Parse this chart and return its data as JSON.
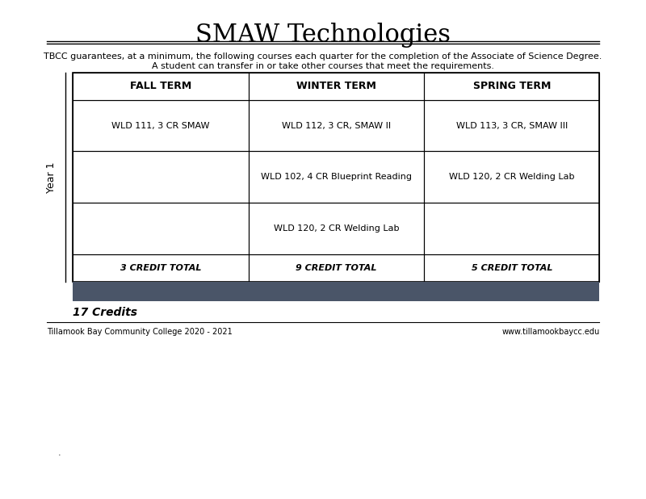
{
  "title": "SMAW Technologies",
  "subtitle_line1": "TBCC guarantees, at a minimum, the following courses each quarter for the completion of the Associate of Science Degree.",
  "subtitle_line2": "A student can transfer in or take other courses that meet the requirements.",
  "col_headers": [
    "FALL TERM",
    "WINTER TERM",
    "SPRING TERM"
  ],
  "year_label": "Year 1",
  "rows": [
    [
      "WLD 111, 3 CR SMAW",
      "WLD 112, 3 CR, SMAW II",
      "WLD 113, 3 CR, SMAW III"
    ],
    [
      "",
      "WLD 102, 4 CR Blueprint Reading",
      "WLD 120, 2 CR Welding Lab"
    ],
    [
      "",
      "WLD 120, 2 CR Welding Lab",
      ""
    ]
  ],
  "totals": [
    "3 CREDIT TOTAL",
    "9 CREDIT TOTAL",
    "5 CREDIT TOTAL"
  ],
  "total_credits": "17 Credits",
  "footer_left": "Tillamook Bay Community College 2020 - 2021",
  "footer_right": "www.tillamookbaycc.edu",
  "dark_band_color": "#4a5568",
  "table_border_color": "#000000",
  "bg_color": "#ffffff",
  "title_fontsize": 22,
  "subtitle_fontsize": 8,
  "header_fontsize": 9,
  "cell_fontsize": 8,
  "total_fontsize": 8,
  "credits_fontsize": 10,
  "footer_fontsize": 7
}
